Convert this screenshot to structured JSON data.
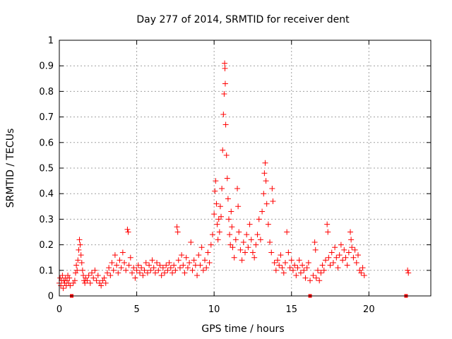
{
  "chart_data": {
    "type": "scatter",
    "title": "Day 277 of 2014, SRMTID for receiver dent",
    "xlabel": "GPS time / hours",
    "ylabel": "SRMTID / TECUs",
    "xlim": [
      0,
      24
    ],
    "ylim": [
      0,
      1
    ],
    "xticks": [
      0,
      5,
      10,
      15,
      20
    ],
    "yticks": [
      0,
      0.1,
      0.2,
      0.3,
      0.4,
      0.5,
      0.6,
      0.7,
      0.8,
      0.9,
      1
    ],
    "xtick_labels": [
      "0",
      "5",
      "10",
      "15",
      "20"
    ],
    "ytick_labels": [
      "0",
      "0.1",
      "0.2",
      "0.3",
      "0.4",
      "0.5",
      "0.6",
      "0.7",
      "0.8",
      "0.9",
      "1"
    ],
    "grid": true,
    "marker": "plus",
    "color": "#ff0000",
    "series": [
      {
        "name": "SRMTID",
        "points": [
          [
            0.0,
            0.05
          ],
          [
            0.05,
            0.07
          ],
          [
            0.1,
            0.04
          ],
          [
            0.15,
            0.06
          ],
          [
            0.2,
            0.08
          ],
          [
            0.25,
            0.03
          ],
          [
            0.3,
            0.06
          ],
          [
            0.35,
            0.05
          ],
          [
            0.4,
            0.07
          ],
          [
            0.45,
            0.04
          ],
          [
            0.5,
            0.06
          ],
          [
            0.55,
            0.08
          ],
          [
            0.6,
            0.05
          ],
          [
            0.65,
            0.07
          ],
          [
            0.7,
            0.04
          ],
          [
            0.9,
            0.05
          ],
          [
            1.0,
            0.06
          ],
          [
            1.05,
            0.09
          ],
          [
            1.1,
            0.12
          ],
          [
            1.15,
            0.1
          ],
          [
            1.2,
            0.14
          ],
          [
            1.25,
            0.18
          ],
          [
            1.3,
            0.22
          ],
          [
            1.35,
            0.2
          ],
          [
            1.4,
            0.16
          ],
          [
            1.45,
            0.13
          ],
          [
            1.5,
            0.1
          ],
          [
            1.55,
            0.08
          ],
          [
            1.6,
            0.06
          ],
          [
            1.65,
            0.05
          ],
          [
            1.7,
            0.07
          ],
          [
            1.8,
            0.06
          ],
          [
            1.9,
            0.08
          ],
          [
            2.0,
            0.05
          ],
          [
            2.1,
            0.09
          ],
          [
            2.2,
            0.07
          ],
          [
            2.3,
            0.1
          ],
          [
            2.4,
            0.06
          ],
          [
            2.5,
            0.08
          ],
          [
            2.6,
            0.05
          ],
          [
            2.7,
            0.04
          ],
          [
            2.8,
            0.06
          ],
          [
            2.9,
            0.07
          ],
          [
            3.0,
            0.05
          ],
          [
            3.1,
            0.09
          ],
          [
            3.2,
            0.11
          ],
          [
            3.3,
            0.08
          ],
          [
            3.4,
            0.13
          ],
          [
            3.5,
            0.1
          ],
          [
            3.6,
            0.16
          ],
          [
            3.7,
            0.12
          ],
          [
            3.8,
            0.09
          ],
          [
            3.9,
            0.14
          ],
          [
            4.0,
            0.11
          ],
          [
            4.1,
            0.17
          ],
          [
            4.2,
            0.13
          ],
          [
            4.3,
            0.1
          ],
          [
            4.4,
            0.26
          ],
          [
            4.45,
            0.25
          ],
          [
            4.5,
            0.12
          ],
          [
            4.6,
            0.15
          ],
          [
            4.7,
            0.09
          ],
          [
            4.8,
            0.11
          ],
          [
            4.9,
            0.07
          ],
          [
            5.0,
            0.1
          ],
          [
            5.1,
            0.12
          ],
          [
            5.2,
            0.09
          ],
          [
            5.3,
            0.11
          ],
          [
            5.4,
            0.08
          ],
          [
            5.5,
            0.1
          ],
          [
            5.6,
            0.13
          ],
          [
            5.7,
            0.09
          ],
          [
            5.8,
            0.12
          ],
          [
            5.9,
            0.1
          ],
          [
            6.0,
            0.14
          ],
          [
            6.1,
            0.11
          ],
          [
            6.2,
            0.09
          ],
          [
            6.3,
            0.13
          ],
          [
            6.4,
            0.1
          ],
          [
            6.5,
            0.12
          ],
          [
            6.6,
            0.08
          ],
          [
            6.7,
            0.11
          ],
          [
            6.8,
            0.09
          ],
          [
            6.9,
            0.12
          ],
          [
            7.0,
            0.1
          ],
          [
            7.1,
            0.13
          ],
          [
            7.2,
            0.11
          ],
          [
            7.3,
            0.09
          ],
          [
            7.4,
            0.12
          ],
          [
            7.5,
            0.1
          ],
          [
            7.6,
            0.27
          ],
          [
            7.65,
            0.25
          ],
          [
            7.7,
            0.14
          ],
          [
            7.8,
            0.11
          ],
          [
            7.9,
            0.16
          ],
          [
            8.0,
            0.12
          ],
          [
            8.1,
            0.09
          ],
          [
            8.2,
            0.15
          ],
          [
            8.3,
            0.11
          ],
          [
            8.4,
            0.13
          ],
          [
            8.5,
            0.21
          ],
          [
            8.6,
            0.1
          ],
          [
            8.7,
            0.14
          ],
          [
            8.8,
            0.12
          ],
          [
            8.9,
            0.08
          ],
          [
            9.0,
            0.16
          ],
          [
            9.1,
            0.12
          ],
          [
            9.2,
            0.19
          ],
          [
            9.3,
            0.1
          ],
          [
            9.4,
            0.14
          ],
          [
            9.5,
            0.11
          ],
          [
            9.6,
            0.17
          ],
          [
            9.7,
            0.13
          ],
          [
            9.8,
            0.2
          ],
          [
            9.9,
            0.24
          ],
          [
            10.0,
            0.32
          ],
          [
            10.05,
            0.41
          ],
          [
            10.1,
            0.45
          ],
          [
            10.15,
            0.36
          ],
          [
            10.2,
            0.28
          ],
          [
            10.25,
            0.22
          ],
          [
            10.3,
            0.3
          ],
          [
            10.35,
            0.25
          ],
          [
            10.4,
            0.35
          ],
          [
            10.45,
            0.31
          ],
          [
            10.5,
            0.42
          ],
          [
            10.55,
            0.57
          ],
          [
            10.6,
            0.71
          ],
          [
            10.65,
            0.79
          ],
          [
            10.68,
            0.91
          ],
          [
            10.7,
            0.89
          ],
          [
            10.72,
            0.83
          ],
          [
            10.75,
            0.67
          ],
          [
            10.8,
            0.55
          ],
          [
            10.85,
            0.46
          ],
          [
            10.9,
            0.38
          ],
          [
            10.95,
            0.3
          ],
          [
            11.0,
            0.24
          ],
          [
            11.05,
            0.2
          ],
          [
            11.1,
            0.33
          ],
          [
            11.15,
            0.27
          ],
          [
            11.2,
            0.19
          ],
          [
            11.3,
            0.15
          ],
          [
            11.4,
            0.22
          ],
          [
            11.5,
            0.42
          ],
          [
            11.55,
            0.35
          ],
          [
            11.6,
            0.25
          ],
          [
            11.7,
            0.18
          ],
          [
            11.8,
            0.14
          ],
          [
            11.9,
            0.21
          ],
          [
            12.0,
            0.17
          ],
          [
            12.1,
            0.24
          ],
          [
            12.2,
            0.19
          ],
          [
            12.3,
            0.28
          ],
          [
            12.4,
            0.22
          ],
          [
            12.5,
            0.17
          ],
          [
            12.6,
            0.15
          ],
          [
            12.7,
            0.2
          ],
          [
            12.8,
            0.24
          ],
          [
            12.9,
            0.3
          ],
          [
            13.0,
            0.22
          ],
          [
            13.1,
            0.33
          ],
          [
            13.2,
            0.4
          ],
          [
            13.25,
            0.48
          ],
          [
            13.3,
            0.52
          ],
          [
            13.35,
            0.45
          ],
          [
            13.4,
            0.36
          ],
          [
            13.5,
            0.28
          ],
          [
            13.6,
            0.21
          ],
          [
            13.7,
            0.17
          ],
          [
            13.75,
            0.42
          ],
          [
            13.8,
            0.37
          ],
          [
            13.9,
            0.13
          ],
          [
            14.0,
            0.1
          ],
          [
            14.1,
            0.14
          ],
          [
            14.2,
            0.12
          ],
          [
            14.3,
            0.16
          ],
          [
            14.4,
            0.11
          ],
          [
            14.5,
            0.09
          ],
          [
            14.6,
            0.13
          ],
          [
            14.7,
            0.25
          ],
          [
            14.8,
            0.17
          ],
          [
            14.9,
            0.11
          ],
          [
            15.0,
            0.14
          ],
          [
            15.1,
            0.1
          ],
          [
            15.2,
            0.12
          ],
          [
            15.3,
            0.08
          ],
          [
            15.4,
            0.11
          ],
          [
            15.5,
            0.14
          ],
          [
            15.6,
            0.09
          ],
          [
            15.7,
            0.12
          ],
          [
            15.8,
            0.1
          ],
          [
            15.9,
            0.07
          ],
          [
            16.0,
            0.11
          ],
          [
            16.1,
            0.13
          ],
          [
            16.2,
            0.06
          ],
          [
            16.4,
            0.08
          ],
          [
            16.5,
            0.21
          ],
          [
            16.55,
            0.18
          ],
          [
            16.6,
            0.07
          ],
          [
            16.7,
            0.1
          ],
          [
            16.8,
            0.06
          ],
          [
            16.9,
            0.09
          ],
          [
            17.0,
            0.12
          ],
          [
            17.1,
            0.1
          ],
          [
            17.2,
            0.14
          ],
          [
            17.3,
            0.28
          ],
          [
            17.35,
            0.25
          ],
          [
            17.4,
            0.15
          ],
          [
            17.5,
            0.12
          ],
          [
            17.6,
            0.17
          ],
          [
            17.7,
            0.13
          ],
          [
            17.8,
            0.19
          ],
          [
            17.9,
            0.15
          ],
          [
            18.0,
            0.11
          ],
          [
            18.1,
            0.16
          ],
          [
            18.2,
            0.2
          ],
          [
            18.3,
            0.14
          ],
          [
            18.4,
            0.18
          ],
          [
            18.5,
            0.15
          ],
          [
            18.6,
            0.12
          ],
          [
            18.7,
            0.17
          ],
          [
            18.8,
            0.25
          ],
          [
            18.85,
            0.22
          ],
          [
            18.9,
            0.19
          ],
          [
            19.0,
            0.15
          ],
          [
            19.1,
            0.18
          ],
          [
            19.2,
            0.13
          ],
          [
            19.3,
            0.16
          ],
          [
            19.4,
            0.1
          ],
          [
            19.5,
            0.09
          ],
          [
            19.6,
            0.11
          ],
          [
            19.7,
            0.08
          ],
          [
            22.5,
            0.1
          ],
          [
            22.55,
            0.09
          ]
        ]
      }
    ],
    "zero_points": [
      0.8,
      16.2,
      22.4
    ]
  }
}
